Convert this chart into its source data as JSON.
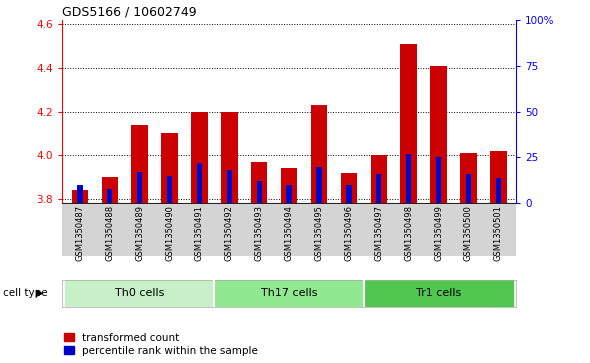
{
  "title": "GDS5166 / 10602749",
  "samples": [
    "GSM1350487",
    "GSM1350488",
    "GSM1350489",
    "GSM1350490",
    "GSM1350491",
    "GSM1350492",
    "GSM1350493",
    "GSM1350494",
    "GSM1350495",
    "GSM1350496",
    "GSM1350497",
    "GSM1350498",
    "GSM1350499",
    "GSM1350500",
    "GSM1350501"
  ],
  "transformed_count": [
    3.84,
    3.9,
    4.14,
    4.1,
    4.2,
    4.2,
    3.97,
    3.94,
    4.23,
    3.92,
    4.0,
    4.51,
    4.41,
    4.01,
    4.02
  ],
  "percentile_rank": [
    10,
    8,
    17,
    15,
    22,
    18,
    12,
    10,
    20,
    10,
    16,
    27,
    25,
    16,
    14
  ],
  "cell_types": [
    {
      "label": "Th0 cells",
      "start": 0,
      "end": 5,
      "color": "#c8f0c8"
    },
    {
      "label": "Th17 cells",
      "start": 5,
      "end": 10,
      "color": "#90e890"
    },
    {
      "label": "Tr1 cells",
      "start": 10,
      "end": 15,
      "color": "#50c850"
    }
  ],
  "ylim_left": [
    3.78,
    4.62
  ],
  "ylim_right": [
    0,
    100
  ],
  "yticks_left": [
    3.8,
    4.0,
    4.2,
    4.4,
    4.6
  ],
  "yticks_right": [
    0,
    25,
    50,
    75,
    100
  ],
  "ytick_labels_right": [
    "0",
    "25",
    "50",
    "75",
    "100%"
  ],
  "bar_color_red": "#cc0000",
  "bar_color_blue": "#0000cc",
  "bar_width": 0.55,
  "bg_gray": "#d4d4d4",
  "legend_labels": [
    "transformed count",
    "percentile rank within the sample"
  ],
  "cell_type_label": "cell type"
}
